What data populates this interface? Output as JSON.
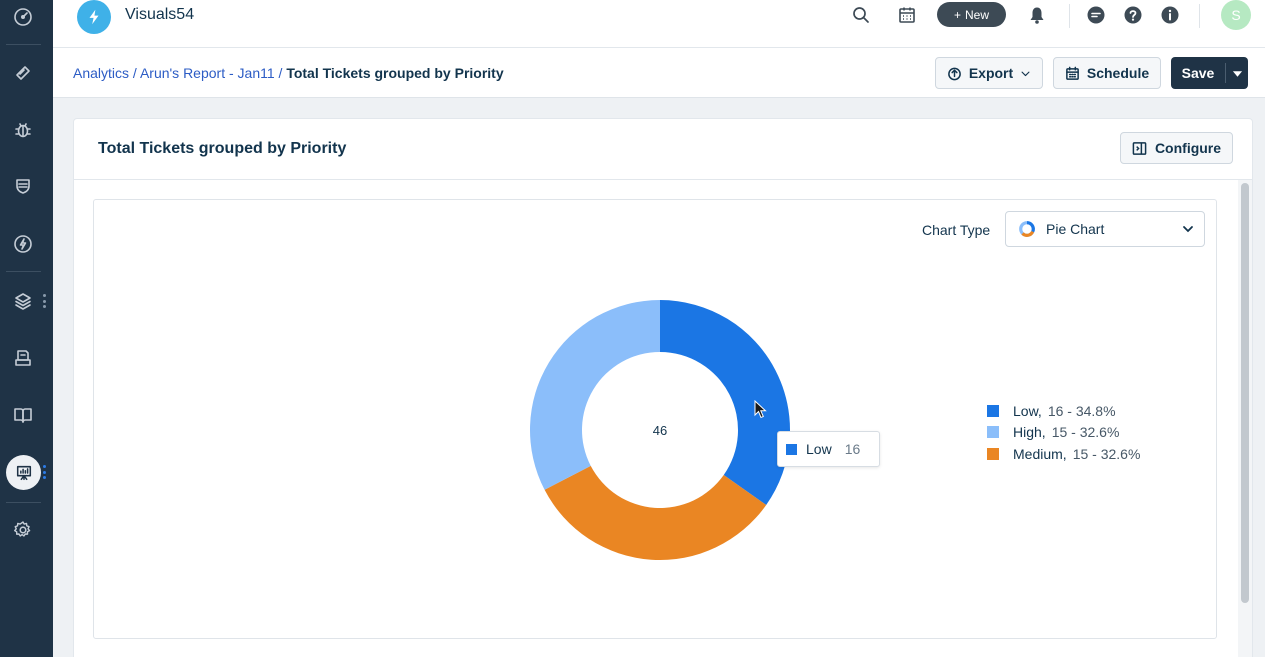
{
  "app": {
    "name": "Visuals54"
  },
  "topbar": {
    "new_label": "New",
    "avatar_initial": "S",
    "icons": [
      "search-icon",
      "calendar-icon",
      "bell-icon",
      "chat-icon",
      "help-icon",
      "info-icon"
    ]
  },
  "sidebar": {
    "items": [
      "dashboard-icon",
      "tickets-icon",
      "bug-icon",
      "shield-icon",
      "bolt-icon",
      "layers-icon",
      "inbox-icon",
      "book-icon",
      "analytics-icon",
      "settings-icon"
    ],
    "active": "analytics-icon"
  },
  "breadcrumb": {
    "links": [
      "Analytics /",
      "Arun's Report - Jan11 /"
    ],
    "current": "Total Tickets grouped by Priority"
  },
  "actions": {
    "export_label": "Export",
    "schedule_label": "Schedule",
    "save_label": "Save"
  },
  "card": {
    "title": "Total Tickets grouped by Priority",
    "configure_label": "Configure"
  },
  "chart_controls": {
    "type_label": "Chart Type",
    "type_value": "Pie Chart"
  },
  "tooltip": {
    "label": "Low",
    "value": "16"
  },
  "chart_data": {
    "type": "pie",
    "style": "donut",
    "total_label": "46",
    "categories": [
      "Low",
      "High",
      "Medium"
    ],
    "values": [
      16,
      15,
      15
    ],
    "percent_labels": [
      "16 - 34.8%",
      "15 - 32.6%",
      "15 - 32.6%"
    ],
    "colors": [
      "#1b76e4",
      "#8bbefa",
      "#ea8623"
    ],
    "slice_order_clockwise_from_top": [
      "Low",
      "Medium",
      "High"
    ],
    "legend": "right"
  }
}
